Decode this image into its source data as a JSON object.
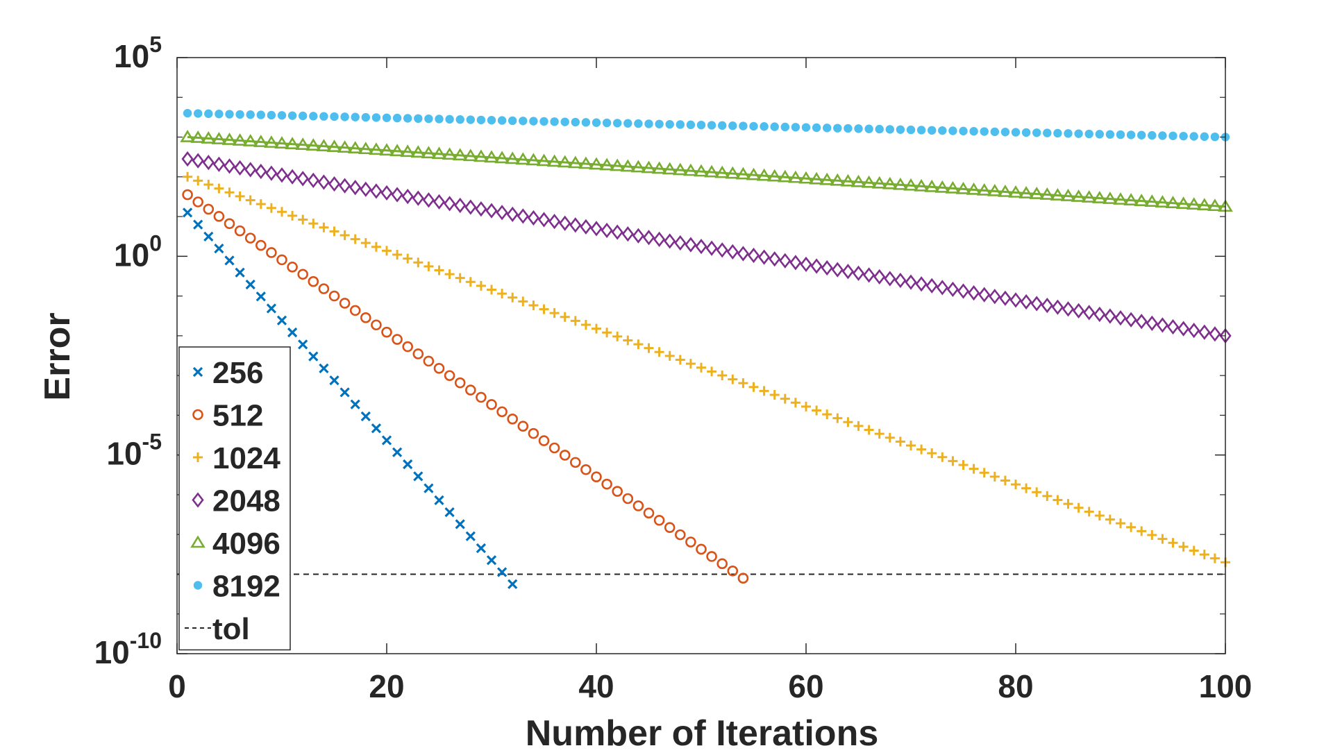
{
  "chart_data": {
    "type": "scatter",
    "title": "",
    "xlabel": "Number of Iterations",
    "ylabel": "Error",
    "xlim": [
      0,
      100
    ],
    "ylim_exponent": [
      -10,
      5
    ],
    "yscale": "log",
    "x_ticks": [
      "0",
      "20",
      "40",
      "60",
      "80",
      "100"
    ],
    "y_ticks": [
      {
        "base": "10",
        "exp": "-10",
        "value_log10": -10
      },
      {
        "base": "10",
        "exp": "-5",
        "value_log10": -5
      },
      {
        "base": "10",
        "exp": "0",
        "value_log10": 0
      },
      {
        "base": "10",
        "exp": "5",
        "value_log10": 5
      }
    ],
    "grid": false,
    "legend_position": "bottom-left",
    "tolerance": {
      "name": "tol",
      "log10_value": -8.0,
      "color": "#262626",
      "style": "dashed"
    },
    "series": [
      {
        "name": "256",
        "marker": "x",
        "color": "#0072BD",
        "x_start": 1,
        "x_end": 32,
        "log10_start": 1.1,
        "log10_end": -8.25
      },
      {
        "name": "512",
        "marker": "circle",
        "color": "#D95319",
        "x_start": 1,
        "x_end": 54,
        "log10_start": 1.55,
        "log10_end": -8.1
      },
      {
        "name": "1024",
        "marker": "plus",
        "color": "#EDB120",
        "x_start": 1,
        "x_end": 100,
        "log10_start": 2.0,
        "log10_end": -7.7
      },
      {
        "name": "2048",
        "marker": "diamond",
        "color": "#7E2F8E",
        "x_start": 1,
        "x_end": 100,
        "log10_start": 2.45,
        "log10_end": -2.0
      },
      {
        "name": "4096",
        "marker": "triangle",
        "color": "#77AC30",
        "x_start": 1,
        "x_end": 100,
        "log10_start": 3.0,
        "log10_end": 1.25
      },
      {
        "name": "8192",
        "marker": "dot",
        "color": "#4DBEEE",
        "x_start": 1,
        "x_end": 100,
        "log10_start": 3.6,
        "log10_end": 3.0
      }
    ]
  }
}
